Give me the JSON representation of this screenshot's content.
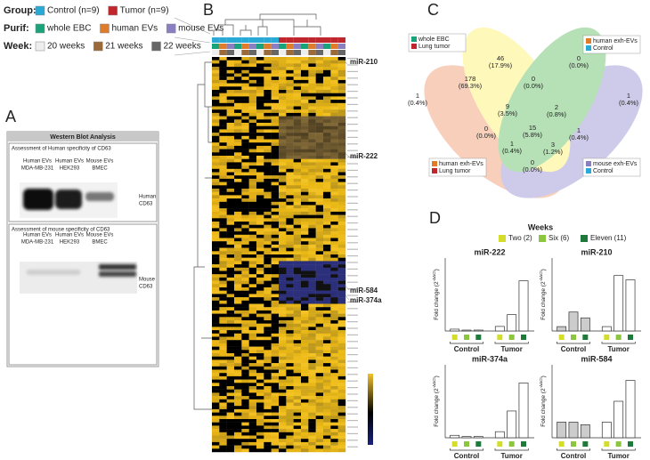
{
  "legend": {
    "group": {
      "label": "Group:",
      "items": [
        {
          "name": "Control (n=9)",
          "color": "#29a9d6"
        },
        {
          "name": "Tumor (n=9)",
          "color": "#c0272d"
        }
      ]
    },
    "purif": {
      "label": "Purif:",
      "items": [
        {
          "name": "whole EBC",
          "color": "#1aa37a"
        },
        {
          "name": "human EVs",
          "color": "#e07b2a"
        },
        {
          "name": "mouse EVs",
          "color": "#8a7fc0"
        }
      ]
    },
    "week": {
      "label": "Week:",
      "items": [
        {
          "name": "20 weeks",
          "color": "#eeeeee"
        },
        {
          "name": "21 weeks",
          "color": "#9a6a3a"
        },
        {
          "name": "22 weeks",
          "color": "#666666"
        }
      ]
    }
  },
  "panel_a": {
    "label": "A",
    "title": "Western Blot Analysis",
    "blots": [
      {
        "title": "Assessment of Human specificity of CD63",
        "lanes": [
          [
            "Human EVs",
            "MDA-MB-231"
          ],
          [
            "Human EVs",
            "HEK293"
          ],
          [
            "Mouse EVs",
            "BMEC"
          ]
        ],
        "marker": [
          "Human",
          "CD63"
        ]
      },
      {
        "title": "Assessment of mouse specificity of CD63",
        "lanes": [
          [
            "Human EVs",
            "MDA-MB-231"
          ],
          [
            "Human EVs",
            "HEK293"
          ],
          [
            "Mouse EVs",
            "BMEC"
          ]
        ],
        "marker": [
          "Mouse",
          "CD63"
        ]
      }
    ]
  },
  "panel_b": {
    "label": "B",
    "callouts": [
      "miR-210",
      "miR-222",
      "miR-584",
      "miR-374a"
    ]
  },
  "panel_c": {
    "label": "C",
    "sets": [
      {
        "lines": [
          "whole EBC",
          "Lung tumor"
        ],
        "colors": [
          "#1aa37a",
          "#c0272d"
        ]
      },
      {
        "lines": [
          "human exh-EVs",
          "Control"
        ],
        "colors": [
          "#e07b2a",
          "#29a9d6"
        ]
      },
      {
        "lines": [
          "human exh-EVs",
          "Lung tumor"
        ],
        "colors": [
          "#e07b2a",
          "#c0272d"
        ]
      },
      {
        "lines": [
          "mouse exh-EVs",
          "Control"
        ],
        "colors": [
          "#8a7fc0",
          "#29a9d6"
        ]
      }
    ],
    "regions": [
      [
        "46",
        "(17.9%)"
      ],
      [
        "0",
        "(0.0%)"
      ],
      [
        "178",
        "(69.3%)"
      ],
      [
        "0",
        "(0.0%)"
      ],
      [
        "1",
        "(0.4%)"
      ],
      [
        "1",
        "(0.4%)"
      ],
      [
        "9",
        "(3.5%)"
      ],
      [
        "2",
        "(0.8%)"
      ],
      [
        "0",
        "(0.0%)"
      ],
      [
        "15",
        "(5.8%)"
      ],
      [
        "1",
        "(0.4%)"
      ],
      [
        "1",
        "(0.4%)"
      ],
      [
        "3",
        "(1.2%)"
      ],
      [
        "0",
        "(0.0%)"
      ]
    ]
  },
  "panel_d": {
    "label": "D",
    "legend_title": "Weeks",
    "legend": [
      {
        "name": "Two (2)",
        "color": "#d4de2a"
      },
      {
        "name": "Six (6)",
        "color": "#8cc63f"
      },
      {
        "name": "Eleven (11)",
        "color": "#1d7a3a"
      }
    ],
    "y_label": [
      "Fold change (2",
      "-ΔΔCt",
      ")"
    ],
    "groups": [
      "Control",
      "Tumor"
    ],
    "charts": [
      {
        "type": "bar",
        "title": "miR-222",
        "values": [
          2,
          1,
          1,
          5,
          18,
          55
        ],
        "ylim": [
          0,
          80
        ],
        "bar_colors": [
          "#ffffff",
          "#ffffff",
          "#ffffff",
          "#ffffff",
          "#ffffff",
          "#ffffff"
        ]
      },
      {
        "type": "bar",
        "title": "miR-210",
        "values": [
          3,
          13,
          9,
          3,
          38,
          35
        ],
        "ylim": [
          0,
          50
        ],
        "bar_colors": [
          "#cccccc",
          "#cccccc",
          "#cccccc",
          "#ffffff",
          "#ffffff",
          "#ffffff"
        ]
      },
      {
        "type": "bar",
        "title": "miR-374a",
        "values": [
          2,
          1,
          1,
          5,
          22,
          45
        ],
        "ylim": [
          0,
          60
        ],
        "bar_colors": [
          "#ffffff",
          "#ffffff",
          "#ffffff",
          "#ffffff",
          "#ffffff",
          "#ffffff"
        ]
      },
      {
        "type": "bar",
        "title": "miR-584",
        "values": [
          3,
          3,
          2.5,
          3,
          7,
          11
        ],
        "ylim": [
          0,
          14
        ],
        "bar_colors": [
          "#cccccc",
          "#cccccc",
          "#cccccc",
          "#ffffff",
          "#ffffff",
          "#ffffff"
        ]
      }
    ]
  }
}
